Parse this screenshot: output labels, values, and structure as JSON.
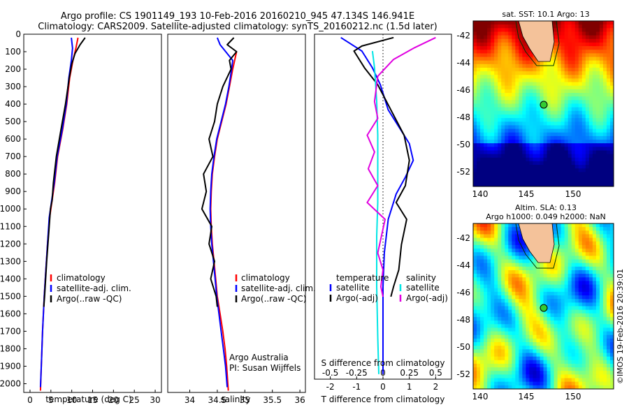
{
  "header": {
    "line1": "Argo profile: CS 1901149_193 10-Feb-2016 20160210_945 47.134S 146.941E",
    "line2": "Climatology: CARS2009. Satellite-adjusted climatology: synTS_20160212.nc (1.5d later)"
  },
  "colors": {
    "climatology": "#ff0000",
    "satellite": "#0000ff",
    "argo": "#000000",
    "salinity_sat": "#00e5e5",
    "salinity_argo": "#e000e0"
  },
  "chart_data": [
    {
      "id": "temperature",
      "type": "line",
      "title": "",
      "xlabel": "temperature (deg C)",
      "ylabel": "",
      "xlim": [
        -1.5,
        31.5
      ],
      "ylim": [
        2050,
        0
      ],
      "xticks": [
        "0",
        "5",
        "10",
        "15",
        "20",
        "25",
        "30"
      ],
      "yticks": [
        "0",
        "100",
        "200",
        "300",
        "400",
        "500",
        "600",
        "700",
        "800",
        "900",
        "1000",
        "1100",
        "1200",
        "1300",
        "1400",
        "1500",
        "1600",
        "1700",
        "1800",
        "1900",
        "2000"
      ],
      "legend": [
        "climatology",
        "satellite-adj. clim.",
        "Argo(..raw -QC)"
      ],
      "series": [
        {
          "name": "climatology",
          "color": "#ff0000",
          "points": [
            [
              11.5,
              20
            ],
            [
              11,
              80
            ],
            [
              10.3,
              150
            ],
            [
              9.5,
              250
            ],
            [
              8.8,
              400
            ],
            [
              7.8,
              550
            ],
            [
              6.6,
              700
            ],
            [
              5.9,
              850
            ],
            [
              5.3,
              950
            ],
            [
              4.7,
              1050
            ],
            [
              4.2,
              1200
            ],
            [
              3.8,
              1350
            ],
            [
              3.4,
              1500
            ],
            [
              3,
              1700
            ],
            [
              2.7,
              1900
            ],
            [
              2.5,
              2040
            ]
          ]
        },
        {
          "name": "satellite-adj. clim.",
          "color": "#0000ff",
          "points": [
            [
              9.9,
              20
            ],
            [
              10.2,
              80
            ],
            [
              9.9,
              150
            ],
            [
              9.3,
              250
            ],
            [
              8.7,
              400
            ],
            [
              7.7,
              550
            ],
            [
              6.5,
              700
            ],
            [
              5.8,
              850
            ],
            [
              5.2,
              950
            ],
            [
              4.6,
              1050
            ],
            [
              4.2,
              1200
            ],
            [
              3.8,
              1350
            ],
            [
              3.4,
              1500
            ],
            [
              3,
              1700
            ],
            [
              2.7,
              1900
            ],
            [
              2.5,
              2020
            ]
          ]
        },
        {
          "name": "Argo",
          "color": "#000000",
          "points": [
            [
              13.2,
              20
            ],
            [
              12,
              60
            ],
            [
              10.8,
              110
            ],
            [
              10,
              170
            ],
            [
              9.4,
              250
            ],
            [
              8.5,
              400
            ],
            [
              7.4,
              550
            ],
            [
              6.3,
              700
            ],
            [
              5.6,
              850
            ],
            [
              5.3,
              950
            ],
            [
              4.9,
              1000
            ],
            [
              4.6,
              1100
            ],
            [
              4.3,
              1200
            ],
            [
              4,
              1300
            ],
            [
              3.5,
              1500
            ],
            [
              3.3,
              1560
            ]
          ]
        }
      ]
    },
    {
      "id": "salinity",
      "type": "line",
      "title": "",
      "xlabel": "salinity",
      "ylabel": "",
      "xlim": [
        33.6,
        36.1
      ],
      "ylim": [
        2050,
        0
      ],
      "xticks": [
        "34",
        "34.5",
        "35",
        "35.5",
        "36"
      ],
      "legend": [
        "climatology",
        "satellite-adj. clim.",
        "Argo(..raw -QC)"
      ],
      "annotation": [
        "Argo Australia",
        "PI: Susan Wijffels"
      ],
      "series": [
        {
          "name": "climatology",
          "color": "#ff0000",
          "points": [
            [
              34.85,
              100
            ],
            [
              34.78,
              200
            ],
            [
              34.72,
              300
            ],
            [
              34.66,
              400
            ],
            [
              34.58,
              500
            ],
            [
              34.5,
              600
            ],
            [
              34.45,
              700
            ],
            [
              34.41,
              800
            ],
            [
              34.39,
              900
            ],
            [
              34.38,
              1000
            ],
            [
              34.39,
              1100
            ],
            [
              34.41,
              1200
            ],
            [
              34.44,
              1300
            ],
            [
              34.47,
              1400
            ],
            [
              34.5,
              1500
            ],
            [
              34.55,
              1600
            ],
            [
              34.6,
              1700
            ],
            [
              34.64,
              1800
            ],
            [
              34.67,
              1900
            ],
            [
              34.7,
              2040
            ]
          ]
        },
        {
          "name": "satellite-adj. clim.",
          "color": "#0000ff",
          "points": [
            [
              34.5,
              20
            ],
            [
              34.55,
              60
            ],
            [
              34.78,
              150
            ],
            [
              34.76,
              200
            ],
            [
              34.71,
              300
            ],
            [
              34.65,
              400
            ],
            [
              34.57,
              500
            ],
            [
              34.49,
              600
            ],
            [
              34.44,
              700
            ],
            [
              34.4,
              800
            ],
            [
              34.38,
              900
            ],
            [
              34.37,
              1000
            ],
            [
              34.38,
              1100
            ],
            [
              34.4,
              1200
            ],
            [
              34.43,
              1300
            ],
            [
              34.46,
              1400
            ],
            [
              34.49,
              1500
            ],
            [
              34.53,
              1600
            ],
            [
              34.57,
              1700
            ],
            [
              34.61,
              1800
            ],
            [
              34.65,
              1900
            ],
            [
              34.68,
              2020
            ]
          ]
        },
        {
          "name": "Argo",
          "color": "#000000",
          "points": [
            [
              34.8,
              20
            ],
            [
              34.68,
              60
            ],
            [
              34.85,
              100
            ],
            [
              34.72,
              150
            ],
            [
              34.75,
              200
            ],
            [
              34.6,
              300
            ],
            [
              34.5,
              400
            ],
            [
              34.45,
              500
            ],
            [
              34.35,
              600
            ],
            [
              34.42,
              700
            ],
            [
              34.25,
              800
            ],
            [
              34.3,
              900
            ],
            [
              34.22,
              1000
            ],
            [
              34.4,
              1100
            ],
            [
              34.35,
              1200
            ],
            [
              34.45,
              1300
            ],
            [
              34.38,
              1400
            ],
            [
              34.48,
              1500
            ],
            [
              34.5,
              1560
            ]
          ]
        }
      ]
    },
    {
      "id": "difference",
      "type": "line",
      "title": "",
      "xlabel": "T difference from climatology",
      "x2label": "S difference from climatology",
      "xlim": [
        -2.6,
        2.6
      ],
      "x2lim": [
        -0.65,
        0.65
      ],
      "ylim": [
        2050,
        0
      ],
      "xticks": [
        "-2",
        "-1",
        "0",
        "1",
        "2"
      ],
      "x2ticks": [
        "-0.5",
        "-0.25",
        "0",
        "0.25",
        "0.5"
      ],
      "legend_temperature": {
        "title": "temperature",
        "items": [
          "satellite",
          "Argo(-adj)"
        ]
      },
      "legend_salinity": {
        "title": "salinity",
        "items": [
          "satellite",
          "Argo(-adj)"
        ]
      },
      "series": [
        {
          "name": "T satellite",
          "color": "#0000ff",
          "points": [
            [
              -1.6,
              20
            ],
            [
              -0.8,
              100
            ],
            [
              -0.4,
              200
            ],
            [
              -0.1,
              300
            ],
            [
              0.2,
              450
            ],
            [
              0.6,
              550
            ],
            [
              1,
              650
            ],
            [
              1.15,
              750
            ],
            [
              0.85,
              850
            ],
            [
              0.5,
              950
            ],
            [
              0.2,
              1100
            ],
            [
              0.05,
              1300
            ],
            [
              0,
              1500
            ],
            [
              0,
              1800
            ],
            [
              0,
              2020
            ]
          ]
        },
        {
          "name": "T Argo",
          "color": "#000000",
          "points": [
            [
              0.4,
              20
            ],
            [
              -0.8,
              70
            ],
            [
              -1.1,
              100
            ],
            [
              -0.7,
              200
            ],
            [
              -0.2,
              300
            ],
            [
              0.3,
              450
            ],
            [
              0.8,
              600
            ],
            [
              1,
              750
            ],
            [
              0.85,
              900
            ],
            [
              0.5,
              1000
            ],
            [
              0.9,
              1100
            ],
            [
              0.7,
              1250
            ],
            [
              0.6,
              1400
            ],
            [
              0.4,
              1500
            ],
            [
              0.3,
              1560
            ]
          ]
        },
        {
          "name": "S satellite",
          "color": "#00e5e5",
          "points": [
            [
              -0.1,
              100
            ],
            [
              -0.08,
              200
            ],
            [
              -0.06,
              400
            ],
            [
              -0.05,
              600
            ],
            [
              -0.05,
              800
            ],
            [
              -0.05,
              1000
            ],
            [
              -0.06,
              1200
            ],
            [
              -0.06,
              1500
            ],
            [
              -0.05,
              1800
            ],
            [
              -0.04,
              2020
            ]
          ]
        },
        {
          "name": "S Argo",
          "color": "#e000e0",
          "points": [
            [
              0.5,
              20
            ],
            [
              0.3,
              80
            ],
            [
              0.1,
              150
            ],
            [
              -0.05,
              250
            ],
            [
              -0.08,
              400
            ],
            [
              -0.05,
              500
            ],
            [
              -0.15,
              600
            ],
            [
              -0.08,
              700
            ],
            [
              -0.14,
              800
            ],
            [
              -0.05,
              900
            ],
            [
              -0.15,
              1000
            ],
            [
              0.02,
              1100
            ],
            [
              -0.05,
              1300
            ],
            [
              0,
              1400
            ],
            [
              -0.02,
              1500
            ],
            [
              0,
              1560
            ]
          ]
        }
      ]
    },
    {
      "id": "sst_map",
      "type": "heatmap",
      "title": "sat. SST: 10.1  Argo: 13",
      "xticks": [
        "140",
        "145",
        "150"
      ],
      "yticks": [
        "-42",
        "-44",
        "-46",
        "-48",
        "-50",
        "-52"
      ],
      "xlim": [
        139.2,
        154.5
      ],
      "ylim": [
        -53,
        -41.5
      ],
      "argo_position": {
        "lon": 146.941,
        "lat": -47.134
      }
    },
    {
      "id": "sla_map",
      "type": "heatmap",
      "title": "Altim. SLA: 0.13",
      "subtitle": "Argo h1000: 0.049 h2000: NaN",
      "xticks": [
        "140",
        "145",
        "150"
      ],
      "yticks": [
        "-42",
        "-44",
        "-46",
        "-48",
        "-50",
        "-52"
      ],
      "xlim": [
        139.2,
        154.5
      ],
      "ylim": [
        -53,
        -41.5
      ],
      "argo_position": {
        "lon": 146.941,
        "lat": -47.134
      }
    }
  ],
  "side_stamp": "©IMOS 19-Feb-2016 20:39:01"
}
